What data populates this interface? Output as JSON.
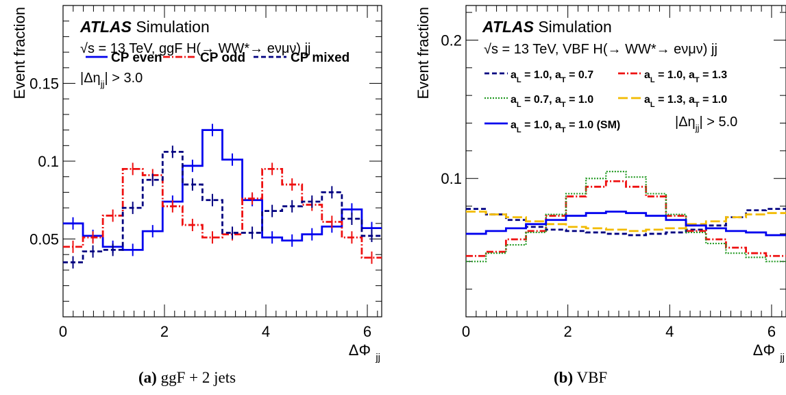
{
  "chart_data": [
    {
      "type": "line",
      "step": true,
      "panel_label": "(a)",
      "caption": "ggF + 2 jets",
      "ylabel": "Event fraction",
      "xlabel": "ΔΦ",
      "xlabel_sub": "jj",
      "xlim": [
        0,
        6.2832
      ],
      "ylim": [
        0,
        0.2
      ],
      "xticks": [
        0,
        2,
        4,
        6
      ],
      "yticks": [
        0.05,
        0.1,
        0.15
      ],
      "ytick_labels": [
        "0.05",
        "0.1",
        "0.15"
      ],
      "experiment": "ATLAS",
      "experiment_suffix": " Simulation",
      "energy_label": "√s = 13 TeV, ggF H(→ WW*→ eνμν) jj",
      "cut_label": "|Δη",
      "cut_sub": "jj",
      "cut_value": "| > 3.0",
      "bins": 16,
      "series": [
        {
          "name": "CP even",
          "color": "#0000ee",
          "style": "solid",
          "values": [
            0.06,
            0.052,
            0.045,
            0.043,
            0.055,
            0.074,
            0.097,
            0.12,
            0.101,
            0.075,
            0.051,
            0.049,
            0.053,
            0.058,
            0.069,
            0.057
          ]
        },
        {
          "name": "CP odd",
          "color": "#ee1111",
          "style": "dashdot",
          "values": [
            0.045,
            0.051,
            0.065,
            0.095,
            0.091,
            0.071,
            0.059,
            0.051,
            0.053,
            0.076,
            0.095,
            0.085,
            0.072,
            0.061,
            0.051,
            0.038
          ]
        },
        {
          "name": "CP mixed",
          "color": "#000080",
          "style": "dashed",
          "values": [
            0.035,
            0.042,
            0.043,
            0.07,
            0.088,
            0.106,
            0.085,
            0.075,
            0.054,
            0.054,
            0.068,
            0.071,
            0.074,
            0.08,
            0.063,
            0.052
          ]
        }
      ]
    },
    {
      "type": "line",
      "step": true,
      "panel_label": "(b)",
      "caption": "VBF",
      "ylabel": "Event fraction",
      "xlabel": "ΔΦ",
      "xlabel_sub": "jj",
      "xlim": [
        0,
        6.2832
      ],
      "ylim": [
        0,
        0.225
      ],
      "xticks": [
        0,
        2,
        4,
        6
      ],
      "yticks": [
        0.1,
        0.2
      ],
      "ytick_labels": [
        "0.1",
        "0.2"
      ],
      "experiment": "ATLAS",
      "experiment_suffix": " Simulation",
      "energy_label": "√s = 13 TeV, VBF H(→ WW*→ eνμν) jj",
      "cut_label": "|Δη",
      "cut_sub": "jj",
      "cut_value": "| > 5.0",
      "bins": 16,
      "series": [
        {
          "name": "a_L = 1.0, a_T = 0.7",
          "label_parts": [
            "a",
            "L",
            " = 1.0, a",
            "T",
            " = 0.7"
          ],
          "color": "#000080",
          "style": "dashed",
          "values": [
            0.078,
            0.074,
            0.07,
            0.065,
            0.063,
            0.062,
            0.061,
            0.06,
            0.059,
            0.06,
            0.061,
            0.063,
            0.066,
            0.072,
            0.077,
            0.078
          ]
        },
        {
          "name": "a_L = 1.0, a_T = 1.3",
          "label_parts": [
            "a",
            "L",
            " = 1.0, a",
            "T",
            " = 1.3"
          ],
          "color": "#ee1111",
          "style": "dashdot",
          "values": [
            0.044,
            0.047,
            0.056,
            0.062,
            0.073,
            0.087,
            0.094,
            0.098,
            0.094,
            0.087,
            0.073,
            0.062,
            0.056,
            0.05,
            0.046,
            0.044
          ]
        },
        {
          "name": "a_L = 0.7, a_T = 1.0",
          "label_parts": [
            "a",
            "L",
            " = 0.7, a",
            "T",
            " = 1.0"
          ],
          "color": "#229922",
          "style": "dotted",
          "values": [
            0.04,
            0.046,
            0.052,
            0.061,
            0.074,
            0.089,
            0.1,
            0.105,
            0.101,
            0.089,
            0.074,
            0.061,
            0.053,
            0.046,
            0.043,
            0.04
          ]
        },
        {
          "name": "a_L = 1.3, a_T = 1.0",
          "label_parts": [
            "a",
            "L",
            " = 1.3, a",
            "T",
            " = 1.0"
          ],
          "color": "#f2bb00",
          "style": "longdash",
          "values": [
            0.076,
            0.074,
            0.072,
            0.069,
            0.067,
            0.065,
            0.064,
            0.063,
            0.062,
            0.063,
            0.064,
            0.067,
            0.069,
            0.072,
            0.074,
            0.075
          ]
        },
        {
          "name": "a_L = 1.0, a_T = 1.0 (SM)",
          "label_parts": [
            "a",
            "L",
            " = 1.0, a",
            "T",
            " = 1.0 (SM)"
          ],
          "color": "#0000ee",
          "style": "solid",
          "values": [
            0.06,
            0.062,
            0.064,
            0.067,
            0.07,
            0.073,
            0.075,
            0.076,
            0.075,
            0.073,
            0.07,
            0.066,
            0.064,
            0.062,
            0.061,
            0.059
          ]
        }
      ]
    }
  ]
}
